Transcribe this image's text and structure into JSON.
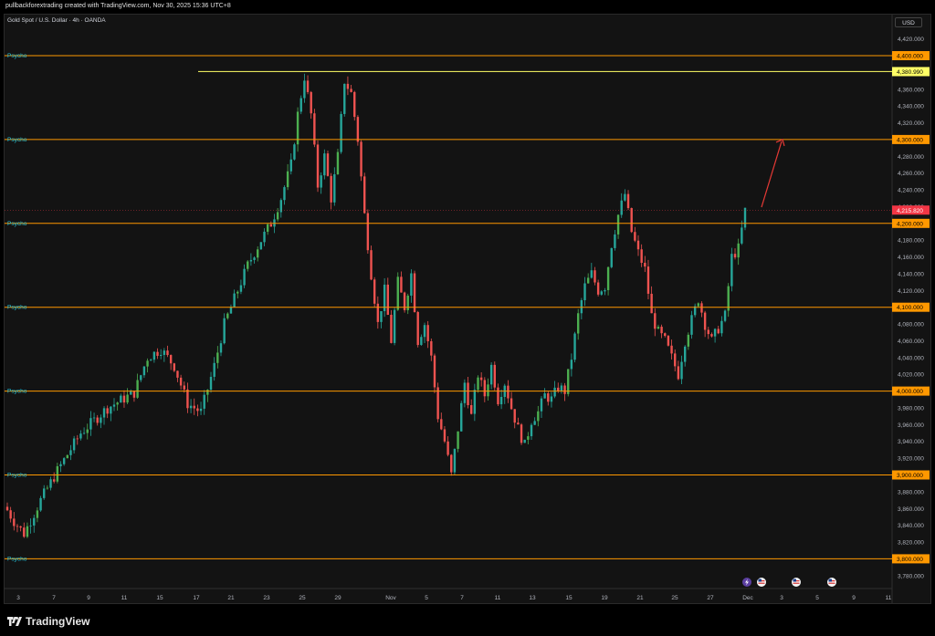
{
  "header": {
    "caption": "pullbackforextrading created with TradingView.com, Nov 30, 2025 15:36 UTC+8",
    "symbol": "Gold Spot / U.S. Dollar · 4h · OANDA",
    "currency": "USD"
  },
  "footer": {
    "brand": "TradingView",
    "logo_icon": "tradingview-logo-icon"
  },
  "colors": {
    "up": "#26a69a",
    "up_alt": "#4caf50",
    "down": "#ef5350",
    "level": "#ff9800",
    "high_level": "#e6e65c",
    "last_price": "#f23645",
    "psycho_label": "#26c6da",
    "arrow": "#e53935",
    "axis_text": "#b2b5be"
  },
  "chart_data": {
    "type": "candlestick",
    "title": "Gold Spot / U.S. Dollar · 4h · OANDA",
    "x_ticks": [
      "3",
      "7",
      "9",
      "11",
      "15",
      "17",
      "21",
      "23",
      "25",
      "29",
      "Nov",
      "5",
      "7",
      "11",
      "13",
      "15",
      "19",
      "21",
      "25",
      "27",
      "Dec",
      "3",
      "5",
      "9",
      "11"
    ],
    "y_ticks": [
      3780,
      3800,
      3820,
      3840,
      3860,
      3880,
      3900,
      3920,
      3940,
      3960,
      3980,
      4000,
      4020,
      4040,
      4060,
      4080,
      4100,
      4120,
      4140,
      4160,
      4180,
      4200,
      4220,
      4240,
      4260,
      4280,
      4300,
      4320,
      4340,
      4360,
      4380,
      4400,
      4420
    ],
    "y_tick_labels": [
      "3,780.000",
      "3,800.000",
      "3,820.000",
      "3,840.000",
      "3,860.000",
      "3,880.000",
      "3,900.000",
      "3,920.000",
      "3,940.000",
      "3,960.000",
      "3,980.000",
      "4,000.000",
      "4,020.000",
      "4,040.000",
      "4,060.000",
      "4,080.000",
      "4,100.000",
      "4,120.000",
      "4,140.000",
      "4,160.000",
      "4,180.000",
      "4,200.000",
      "4,220.000",
      "4,240.000",
      "4,260.000",
      "4,280.000",
      "4,300.000",
      "4,320.000",
      "4,340.000",
      "4,360.000",
      "4,380.000",
      "4,400.000",
      "4,420.000"
    ],
    "ylim": [
      3768,
      4437
    ],
    "horizontal_levels": [
      {
        "price": 4400,
        "label": "Psycho",
        "tag": "4,400.000"
      },
      {
        "price": 4300,
        "label": "Psycho",
        "tag": "4,300.000"
      },
      {
        "price": 4200,
        "label": "Psycho",
        "tag": "4,200.000"
      },
      {
        "price": 4100,
        "label": "Psycho",
        "tag": "4,100.000"
      },
      {
        "price": 4000,
        "label": "Psycho",
        "tag": "4,000.000"
      },
      {
        "price": 3900,
        "label": "Psycho",
        "tag": "3,900.000"
      },
      {
        "price": 3800,
        "label": "Psycho",
        "tag": "3,800.000"
      }
    ],
    "high_level": {
      "price": 4380.99,
      "tag": "4,380.990"
    },
    "last_price": {
      "price": 4215.82,
      "tag": "4,215.820"
    },
    "forecast_arrow": {
      "from": 4215,
      "to": 4300
    },
    "event_icons": [
      "lightning-icon",
      "us-flag-icon",
      "us-flag-icon",
      "us-flag-icon"
    ],
    "candle_count": 222,
    "close_anchors": [
      [
        0,
        3858
      ],
      [
        2,
        3845
      ],
      [
        5,
        3830
      ],
      [
        10,
        3870
      ],
      [
        15,
        3905
      ],
      [
        22,
        3950
      ],
      [
        30,
        3980
      ],
      [
        38,
        3998
      ],
      [
        42,
        4040
      ],
      [
        46,
        4050
      ],
      [
        50,
        4030
      ],
      [
        54,
        3985
      ],
      [
        58,
        3975
      ],
      [
        62,
        4030
      ],
      [
        65,
        4080
      ],
      [
        68,
        4110
      ],
      [
        72,
        4150
      ],
      [
        76,
        4180
      ],
      [
        79,
        4200
      ],
      [
        82,
        4230
      ],
      [
        85,
        4270
      ],
      [
        87,
        4330
      ],
      [
        89,
        4375
      ],
      [
        91,
        4330
      ],
      [
        93,
        4245
      ],
      [
        95,
        4280
      ],
      [
        97,
        4230
      ],
      [
        99,
        4280
      ],
      [
        101,
        4370
      ],
      [
        103,
        4355
      ],
      [
        105,
        4300
      ],
      [
        107,
        4210
      ],
      [
        109,
        4140
      ],
      [
        111,
        4080
      ],
      [
        113,
        4120
      ],
      [
        115,
        4060
      ],
      [
        117,
        4130
      ],
      [
        119,
        4100
      ],
      [
        121,
        4140
      ],
      [
        123,
        4060
      ],
      [
        125,
        4080
      ],
      [
        127,
        4040
      ],
      [
        129,
        3970
      ],
      [
        131,
        3940
      ],
      [
        133,
        3900
      ],
      [
        135,
        3955
      ],
      [
        137,
        4010
      ],
      [
        139,
        3970
      ],
      [
        141,
        4020
      ],
      [
        143,
        3995
      ],
      [
        145,
        4030
      ],
      [
        147,
        3990
      ],
      [
        149,
        4010
      ],
      [
        151,
        3980
      ],
      [
        153,
        3955
      ],
      [
        155,
        3935
      ],
      [
        157,
        3965
      ],
      [
        159,
        3975
      ],
      [
        161,
        3995
      ],
      [
        163,
        3990
      ],
      [
        165,
        4005
      ],
      [
        167,
        4000
      ],
      [
        169,
        4040
      ],
      [
        171,
        4090
      ],
      [
        173,
        4125
      ],
      [
        175,
        4140
      ],
      [
        177,
        4120
      ],
      [
        179,
        4125
      ],
      [
        181,
        4175
      ],
      [
        183,
        4210
      ],
      [
        185,
        4235
      ],
      [
        187,
        4190
      ],
      [
        189,
        4165
      ],
      [
        191,
        4145
      ],
      [
        193,
        4090
      ],
      [
        195,
        4070
      ],
      [
        197,
        4060
      ],
      [
        199,
        4040
      ],
      [
        201,
        4020
      ],
      [
        203,
        4060
      ],
      [
        205,
        4085
      ],
      [
        207,
        4110
      ],
      [
        209,
        4080
      ],
      [
        211,
        4060
      ],
      [
        213,
        4075
      ],
      [
        215,
        4090
      ],
      [
        217,
        4160
      ],
      [
        219,
        4170
      ],
      [
        221,
        4215
      ]
    ]
  }
}
